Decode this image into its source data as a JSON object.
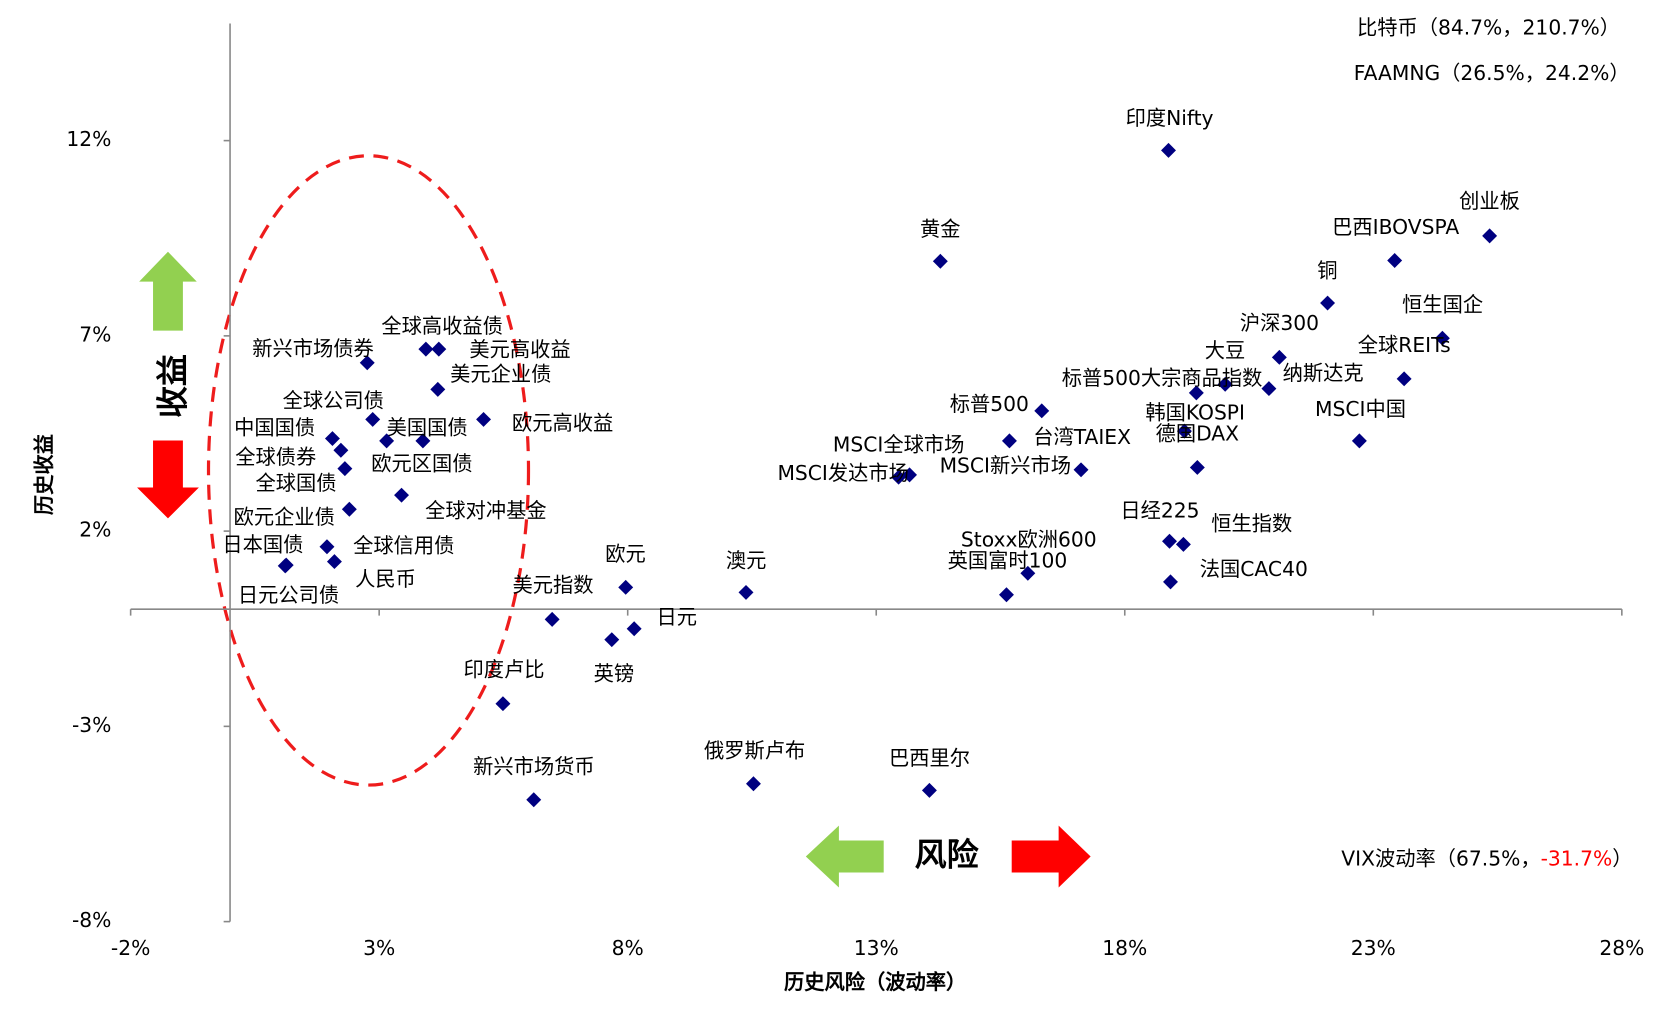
{
  "chart_data": {
    "type": "scatter",
    "x_label": "历史风险（波动率）",
    "y_label": "历史收益",
    "xlim": [
      -2,
      28
    ],
    "ylim": [
      -8,
      15
    ],
    "xticks": [
      {
        "value": -2,
        "label": "-2%"
      },
      {
        "value": 3,
        "label": "3%"
      },
      {
        "value": 8,
        "label": "8%"
      },
      {
        "value": 13,
        "label": "13%"
      },
      {
        "value": 18,
        "label": "18%"
      },
      {
        "value": 23,
        "label": "23%"
      },
      {
        "value": 28,
        "label": "28%"
      }
    ],
    "yticks": [
      {
        "value": 12,
        "label": "12%"
      },
      {
        "value": 7,
        "label": "7%"
      },
      {
        "value": 2,
        "label": "2%"
      },
      {
        "value": -3,
        "label": "-3%"
      },
      {
        "value": -8,
        "label": "-8%"
      }
    ],
    "negative_tick_label_color": "#ff0000",
    "marker_color": "#000080",
    "labels": [
      "印度Nifty",
      "黄金",
      "创业板",
      "巴西IBOVSPA",
      "铜",
      "恒生国企",
      "沪深300",
      "全球REITs",
      "纳斯达克",
      "大豆",
      "标普500大宗商品指数",
      "标普500",
      "韩国KOSPI",
      "德国DAX",
      "MSCI中国",
      "台湾TAIEX",
      "MSCI全球市场",
      "MSCI发达市场",
      "MSCI新兴市场",
      "日经225",
      "恒生指数",
      "法国CAC40",
      "Stoxx欧洲600",
      "英国富时100",
      "澳元",
      "欧元",
      "美元指数",
      "日元",
      "英镑",
      "印度卢比",
      "新兴市场货币",
      "俄罗斯卢布",
      "巴西里尔",
      "全球高收益债",
      "美元高收益",
      "新兴市场债券",
      "美元企业债",
      "全球公司债",
      "欧元高收益",
      "中国国债",
      "美国国债",
      "全球债券",
      "欧元区国债",
      "全球国债",
      "全球对冲基金",
      "欧元企业债",
      "日本国债",
      "全球信用债",
      "人民币",
      "日元公司债"
    ],
    "x": [
      18.88,
      14.29,
      25.34,
      23.43,
      22.08,
      24.39,
      21.11,
      23.62,
      20.9,
      20.02,
      19.44,
      16.33,
      19.2,
      19.46,
      22.72,
      15.68,
      13.67,
      13.45,
      17.12,
      18.9,
      19.18,
      18.92,
      16.05,
      15.62,
      10.38,
      7.96,
      6.48,
      8.13,
      7.68,
      5.49,
      6.11,
      10.53,
      14.07,
      3.94,
      4.2,
      2.76,
      4.18,
      2.87,
      5.1,
      2.06,
      3.88,
      2.23,
      3.15,
      2.31,
      3.45,
      2.4,
      1.11,
      1.95,
      2.1,
      1.13
    ],
    "y": [
      11.75,
      8.91,
      9.56,
      8.93,
      7.84,
      6.94,
      6.45,
      5.9,
      5.65,
      5.76,
      5.54,
      5.08,
      4.56,
      3.63,
      4.31,
      4.31,
      3.44,
      3.38,
      3.57,
      1.74,
      1.66,
      0.7,
      0.92,
      0.37,
      0.43,
      0.56,
      -0.26,
      -0.5,
      -0.78,
      -2.42,
      -4.88,
      -4.47,
      -4.64,
      6.66,
      6.66,
      6.31,
      5.63,
      4.86,
      4.86,
      4.37,
      4.31,
      4.07,
      4.31,
      3.6,
      2.92,
      2.56,
      1.11,
      1.6,
      1.22,
      1.13
    ],
    "annotations": [
      "比特币（84.7%，210.7%）",
      "FAAMNG（26.5%，24.2%）",
      "VIX波动率（67.5%，",
      "-31.7%",
      "）",
      "收益",
      "风险"
    ]
  }
}
